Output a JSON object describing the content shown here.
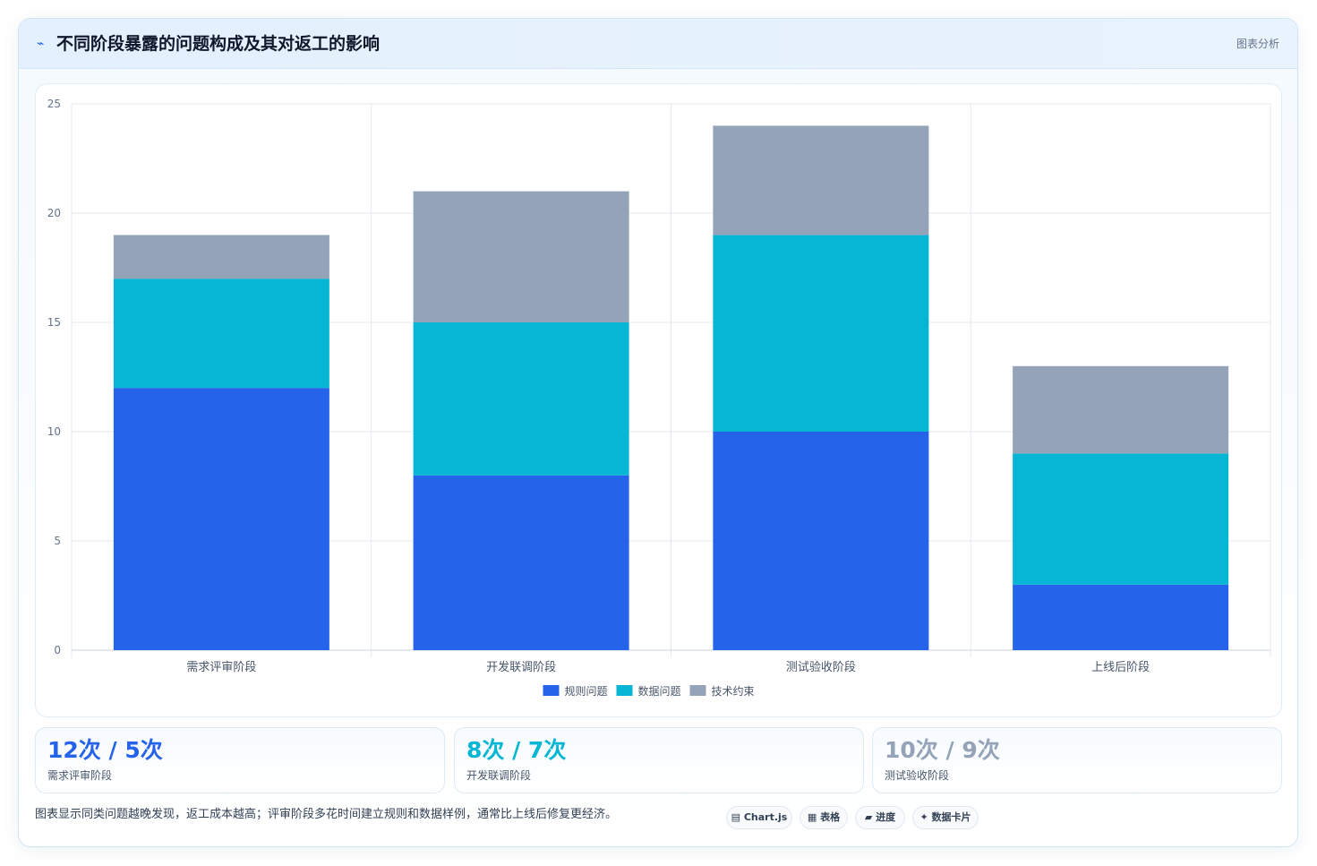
{
  "header": {
    "title": "不同阶段暴露的问题构成及其对返工的影响",
    "tag": "图表分析"
  },
  "colors": {
    "rule": "#2563eb",
    "data": "#06b6d4",
    "tech": "#94a3b8"
  },
  "chart_data": {
    "type": "bar",
    "stacked": true,
    "categories": [
      "需求评审阶段",
      "开发联调阶段",
      "测试验收阶段",
      "上线后阶段"
    ],
    "series": [
      {
        "name": "规则问题",
        "values": [
          12,
          8,
          10,
          3
        ],
        "color": "#2563eb"
      },
      {
        "name": "数据问题",
        "values": [
          5,
          7,
          9,
          6
        ],
        "color": "#06b6d4"
      },
      {
        "name": "技术约束",
        "values": [
          2,
          6,
          5,
          4
        ],
        "color": "#94a3b8"
      }
    ],
    "ylim": [
      0,
      25
    ],
    "yticks": [
      "0",
      "5",
      "10",
      "15",
      "20",
      "25"
    ],
    "grid": true,
    "legend": "bottom"
  },
  "stats": [
    {
      "value": "12次 / 5次",
      "label": "需求评审阶段",
      "color": "#2563eb"
    },
    {
      "value": "8次 / 7次",
      "label": "开发联调阶段",
      "color": "#06b6d4"
    },
    {
      "value": "10次 / 9次",
      "label": "测试验收阶段",
      "color": "#94a3b8"
    }
  ],
  "footer": {
    "note": "图表显示同类问题越晚发现，返工成本越高；评审阶段多花时间建立规则和数据样例，通常比上线后修复更经济。",
    "chips": [
      "▤ Chart.js",
      "▦ 表格",
      "▰ 进度",
      "✦ 数据卡片"
    ]
  }
}
